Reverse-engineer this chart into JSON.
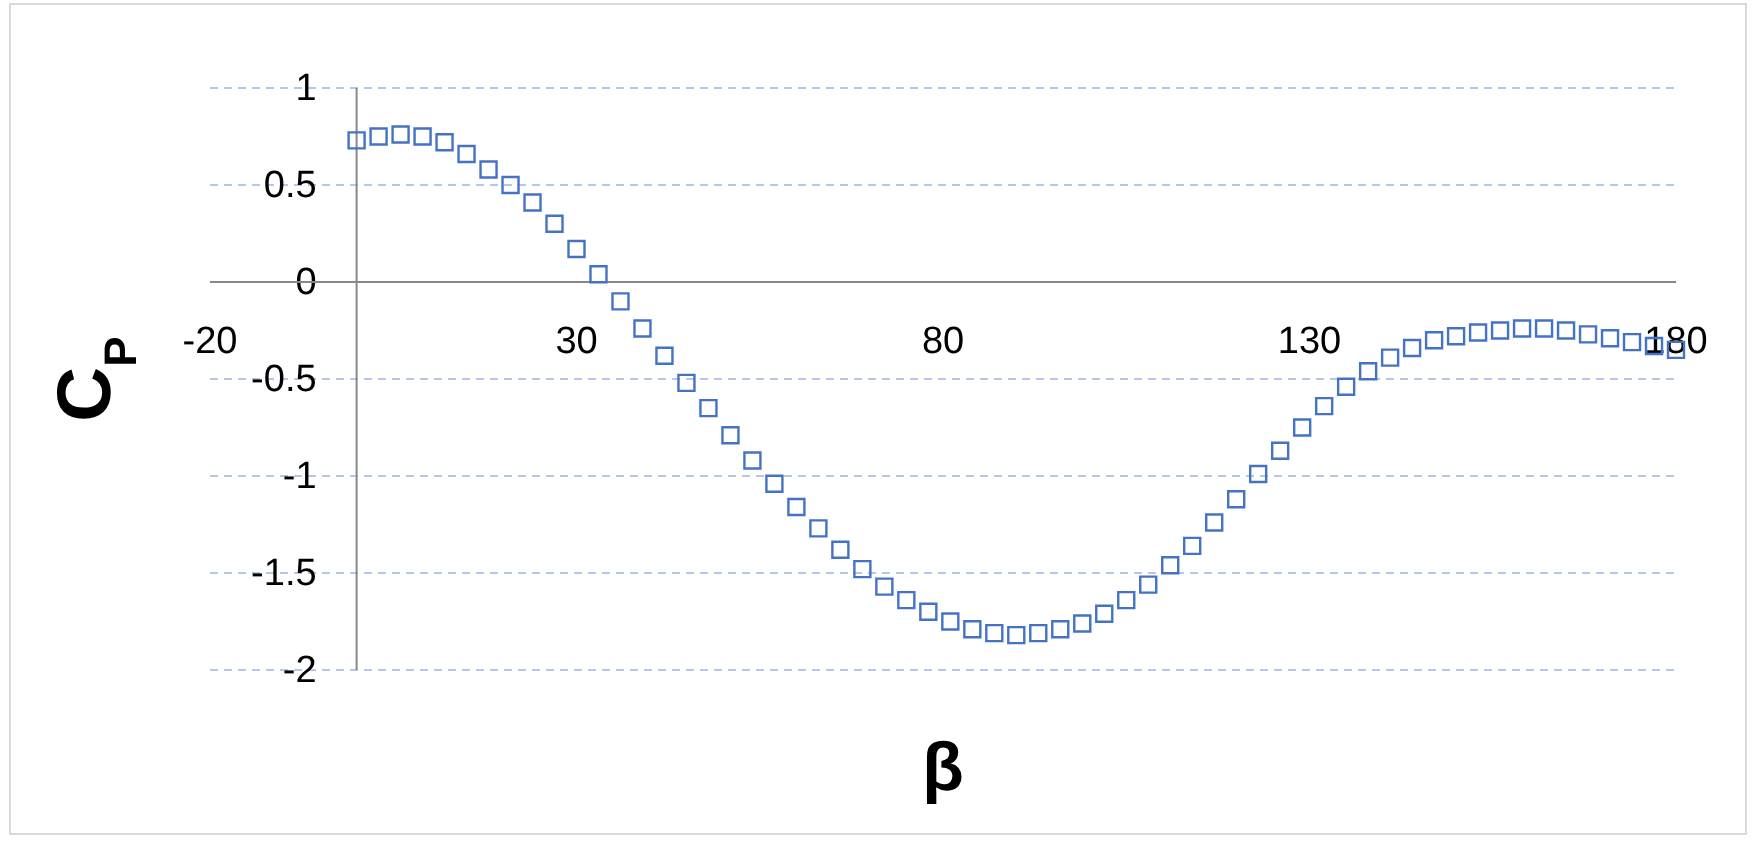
{
  "chart_data": {
    "type": "scatter",
    "xlabel": "β",
    "ylabel": "C$_{P}$",
    "xlim": [
      -20,
      180
    ],
    "xticks": [
      -20,
      30,
      80,
      130,
      180
    ],
    "ylim": [
      -2,
      1
    ],
    "yticks": [
      -2,
      -1.5,
      -1,
      -0.5,
      0,
      0.5,
      1
    ],
    "grid": "y",
    "marker": "square",
    "x": [
      0,
      3,
      6,
      9,
      12,
      15,
      18,
      21,
      24,
      27,
      30,
      33,
      36,
      39,
      42,
      45,
      48,
      51,
      54,
      57,
      60,
      63,
      66,
      69,
      72,
      75,
      78,
      81,
      84,
      87,
      90,
      93,
      96,
      99,
      102,
      105,
      108,
      111,
      114,
      117,
      120,
      123,
      126,
      129,
      132,
      135,
      138,
      141,
      144,
      147,
      150,
      153,
      156,
      159,
      162,
      165,
      168,
      171,
      174,
      177,
      180
    ],
    "series": [
      {
        "color": "#4472c4",
        "values": [
          0.73,
          0.75,
          0.76,
          0.75,
          0.72,
          0.66,
          0.58,
          0.5,
          0.41,
          0.3,
          0.17,
          0.04,
          -0.1,
          -0.24,
          -0.38,
          -0.52,
          -0.65,
          -0.79,
          -0.92,
          -1.04,
          -1.16,
          -1.27,
          -1.38,
          -1.48,
          -1.57,
          -1.64,
          -1.7,
          -1.75,
          -1.79,
          -1.81,
          -1.82,
          -1.81,
          -1.79,
          -1.76,
          -1.71,
          -1.64,
          -1.56,
          -1.46,
          -1.36,
          -1.24,
          -1.12,
          -0.99,
          -0.87,
          -0.75,
          -0.64,
          -0.54,
          -0.46,
          -0.39,
          -0.34,
          -0.3,
          -0.28,
          -0.26,
          -0.25,
          -0.24,
          -0.24,
          -0.25,
          -0.27,
          -0.29,
          -0.31,
          -0.33,
          -0.35
        ]
      }
    ]
  }
}
